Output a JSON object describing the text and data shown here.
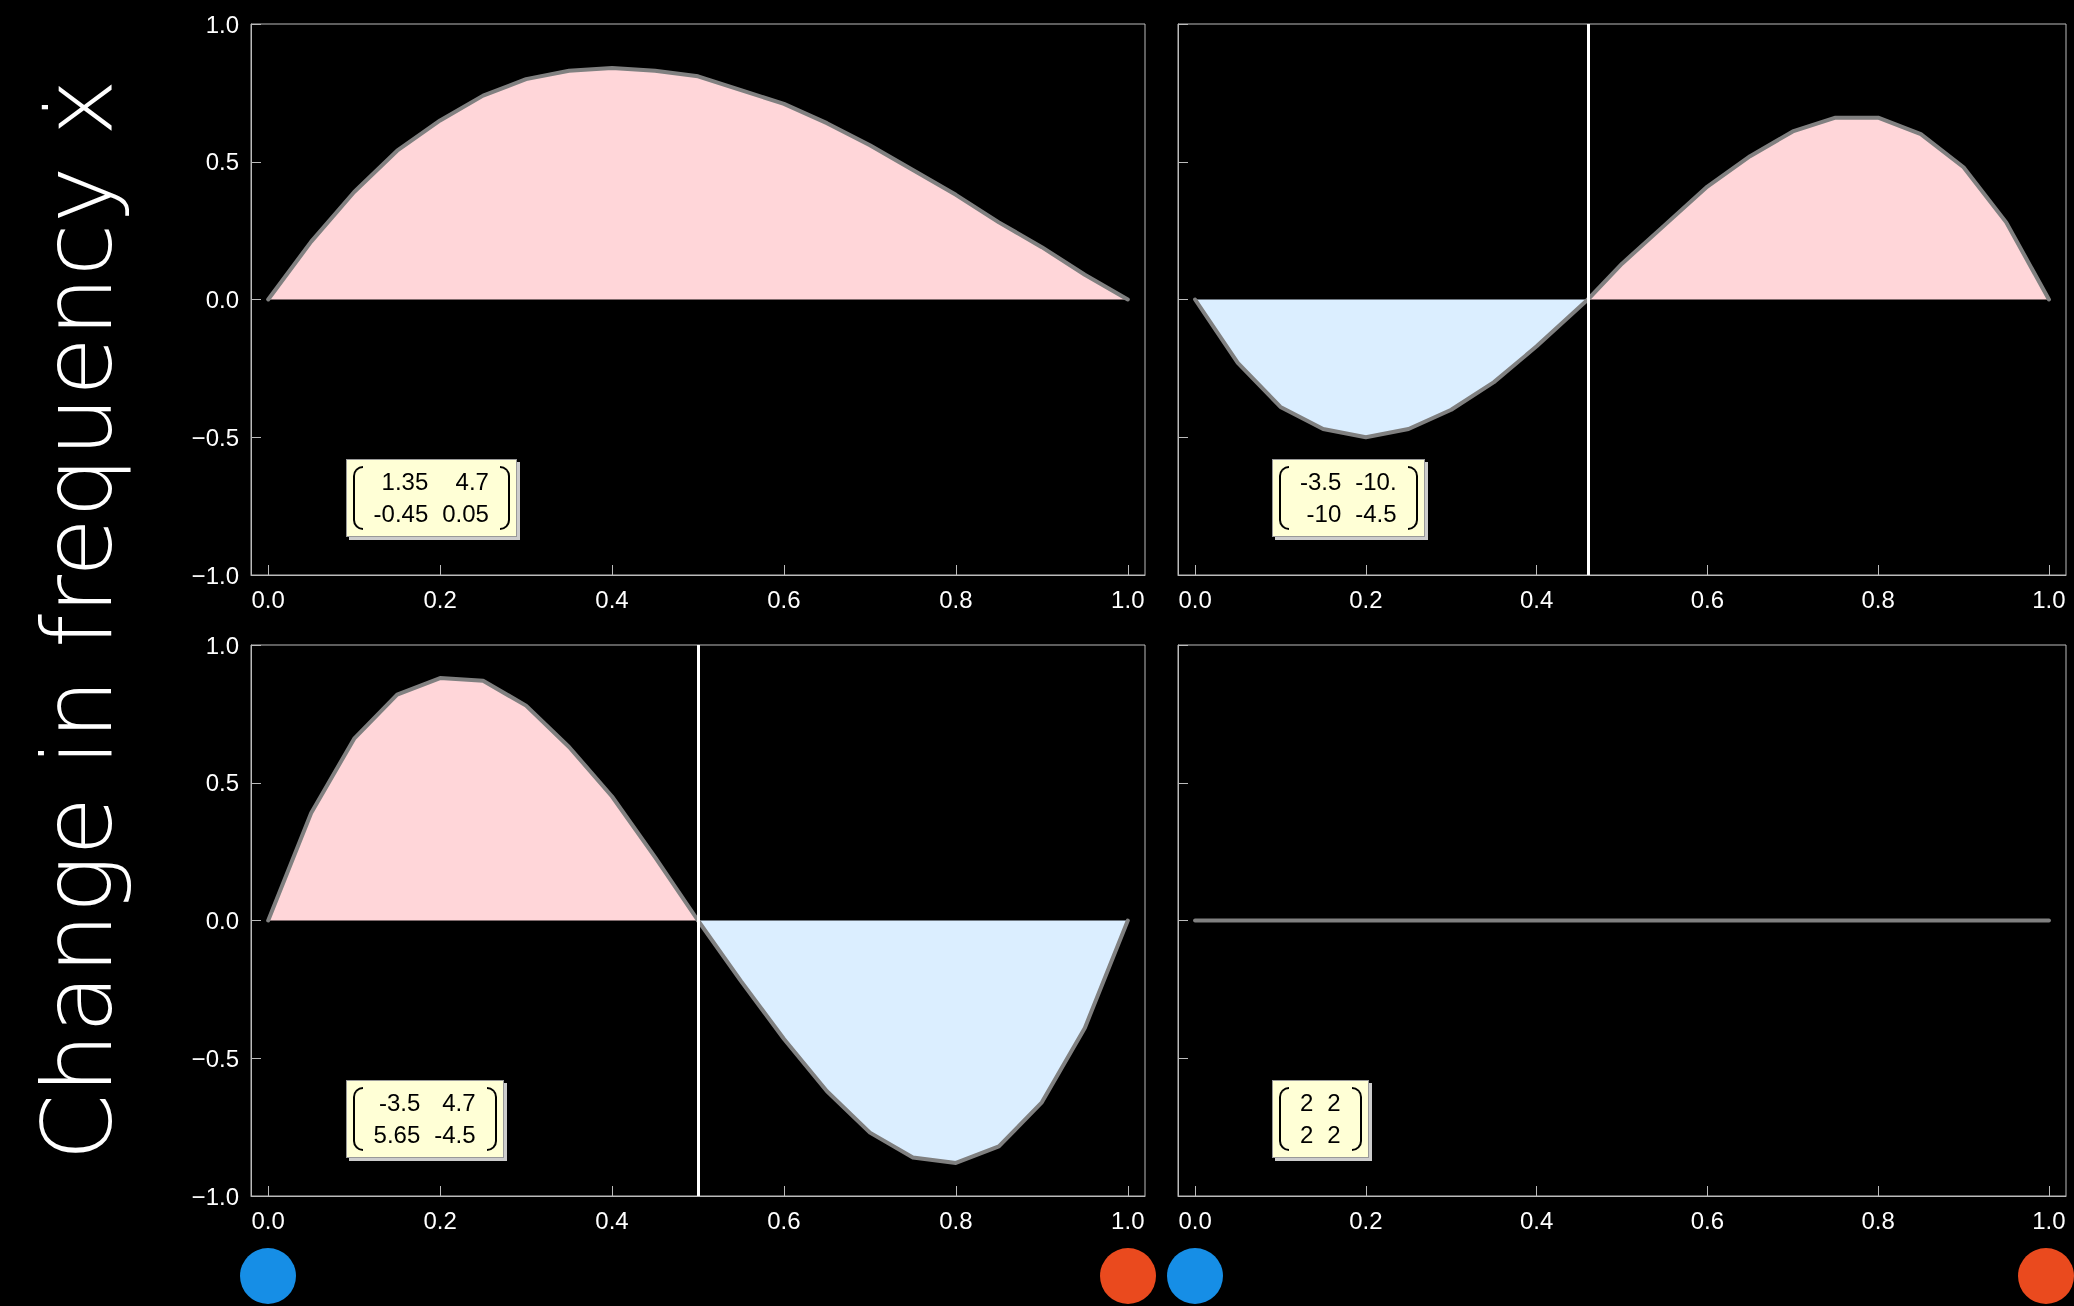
{
  "chart_data": [
    {
      "type": "area",
      "ylabel": "Change in frequency ẋ",
      "xlim": [
        -0.02,
        1.02
      ],
      "ylim": [
        -1,
        1
      ],
      "xticks": [
        {
          "value": 0,
          "label": "0.0"
        },
        {
          "value": 0.2,
          "label": "0.2"
        },
        {
          "value": 0.4,
          "label": "0.4"
        },
        {
          "value": 0.6,
          "label": "0.6"
        },
        {
          "value": 0.8,
          "label": "0.8"
        },
        {
          "value": 1,
          "label": "1.0"
        }
      ],
      "yticks": [
        {
          "value": -1,
          "label": "−1.0"
        },
        {
          "value": -0.5,
          "label": "−0.5"
        },
        {
          "value": 0,
          "label": "0.0"
        },
        {
          "value": 0.5,
          "label": "0.5"
        },
        {
          "value": 1,
          "label": "1.0"
        }
      ],
      "annotations": [
        "1.35 4.7\n-0.45 0.05"
      ],
      "series": [
        {
          "color": "#ffd6d9",
          "x": [
            0,
            0.05,
            0.1,
            0.15,
            0.2,
            0.25,
            0.3,
            0.35,
            0.4,
            0.45,
            0.5,
            0.55,
            0.6,
            0.65,
            0.7,
            0.75,
            0.8,
            0.85,
            0.9,
            0.95,
            1
          ],
          "values": [
            0,
            0.21,
            0.39,
            0.54,
            0.65,
            0.74,
            0.8,
            0.83,
            0.84,
            0.83,
            0.81,
            0.76,
            0.71,
            0.64,
            0.56,
            0.47,
            0.38,
            0.28,
            0.19,
            0.09,
            0
          ]
        }
      ]
    },
    {
      "type": "area",
      "xlim": [
        -0.02,
        1.02
      ],
      "ylim": [
        -1,
        1
      ],
      "tick_labels": "x",
      "xticks": [
        {
          "value": 0,
          "label": "0.0"
        },
        {
          "value": 0.2,
          "label": "0.2"
        },
        {
          "value": 0.4,
          "label": "0.4"
        },
        {
          "value": 0.6,
          "label": "0.6"
        },
        {
          "value": 0.8,
          "label": "0.8"
        },
        {
          "value": 1,
          "label": "1.0"
        }
      ],
      "yticks": [
        {
          "value": -1,
          "label": null
        },
        {
          "value": -0.5,
          "label": null
        },
        {
          "value": 0,
          "label": null
        },
        {
          "value": 0.5,
          "label": null
        },
        {
          "value": 1,
          "label": null
        }
      ],
      "annotations": [
        "-3.5 -10.\n-10 -4.5"
      ],
      "ref_lines": [
        {
          "axis": "x",
          "value": 0.46,
          "color": "#ffffff"
        }
      ],
      "series": [
        {
          "color": "#dbeeff",
          "x": [
            0,
            0.05,
            0.1,
            0.15,
            0.2,
            0.25,
            0.3,
            0.35,
            0.4,
            0.46
          ],
          "values": [
            0,
            -0.23,
            -0.39,
            -0.47,
            -0.5,
            -0.47,
            -0.4,
            -0.3,
            -0.17,
            0
          ]
        },
        {
          "color": "#ffd6d9",
          "x": [
            0.46,
            0.5,
            0.55,
            0.6,
            0.65,
            0.7,
            0.75,
            0.8,
            0.85,
            0.9,
            0.95,
            1
          ],
          "values": [
            0,
            0.13,
            0.27,
            0.41,
            0.52,
            0.61,
            0.66,
            0.66,
            0.6,
            0.48,
            0.28,
            0
          ]
        }
      ]
    },
    {
      "type": "area",
      "xlim": [
        -0.02,
        1.02
      ],
      "ylim": [
        -1,
        1
      ],
      "xticks": [
        {
          "value": 0,
          "label": "0.0"
        },
        {
          "value": 0.2,
          "label": "0.2"
        },
        {
          "value": 0.4,
          "label": "0.4"
        },
        {
          "value": 0.6,
          "label": "0.6"
        },
        {
          "value": 0.8,
          "label": "0.8"
        },
        {
          "value": 1,
          "label": "1.0"
        }
      ],
      "yticks": [
        {
          "value": -1,
          "label": "−1.0"
        },
        {
          "value": -0.5,
          "label": "−0.5"
        },
        {
          "value": 0,
          "label": "0.0"
        },
        {
          "value": 0.5,
          "label": "0.5"
        },
        {
          "value": 1,
          "label": "1.0"
        }
      ],
      "annotations": [
        "-3.5 4.7\n5.65 -4.5"
      ],
      "ref_lines": [
        {
          "axis": "x",
          "value": 0.5,
          "color": "#ffffff"
        }
      ],
      "series": [
        {
          "color": "#ffd6d9",
          "x": [
            0,
            0.05,
            0.1,
            0.15,
            0.2,
            0.25,
            0.3,
            0.35,
            0.4,
            0.45,
            0.5
          ],
          "values": [
            0,
            0.39,
            0.66,
            0.82,
            0.88,
            0.87,
            0.78,
            0.63,
            0.45,
            0.23,
            0
          ]
        },
        {
          "color": "#dbeeff",
          "x": [
            0.5,
            0.55,
            0.6,
            0.65,
            0.7,
            0.75,
            0.8,
            0.85,
            0.9,
            0.95,
            1
          ],
          "values": [
            0,
            -0.22,
            -0.43,
            -0.62,
            -0.77,
            -0.86,
            -0.88,
            -0.82,
            -0.66,
            -0.39,
            0
          ]
        }
      ]
    },
    {
      "type": "line",
      "xlim": [
        -0.02,
        1.02
      ],
      "ylim": [
        -1,
        1
      ],
      "tick_labels": "x",
      "xticks": [
        {
          "value": 0,
          "label": "0.0"
        },
        {
          "value": 0.2,
          "label": "0.2"
        },
        {
          "value": 0.4,
          "label": "0.4"
        },
        {
          "value": 0.6,
          "label": "0.6"
        },
        {
          "value": 0.8,
          "label": "0.8"
        },
        {
          "value": 1,
          "label": "1.0"
        }
      ],
      "yticks": [
        {
          "value": -1,
          "label": null
        },
        {
          "value": -0.5,
          "label": null
        },
        {
          "value": 0,
          "label": null
        },
        {
          "value": 0.5,
          "label": null
        },
        {
          "value": 1,
          "label": null
        }
      ],
      "annotations": [
        "2 2\n2 2"
      ],
      "series": [
        {
          "color": "#808080",
          "x": [
            0,
            1
          ],
          "values": [
            0,
            0
          ]
        }
      ]
    }
  ]
}
